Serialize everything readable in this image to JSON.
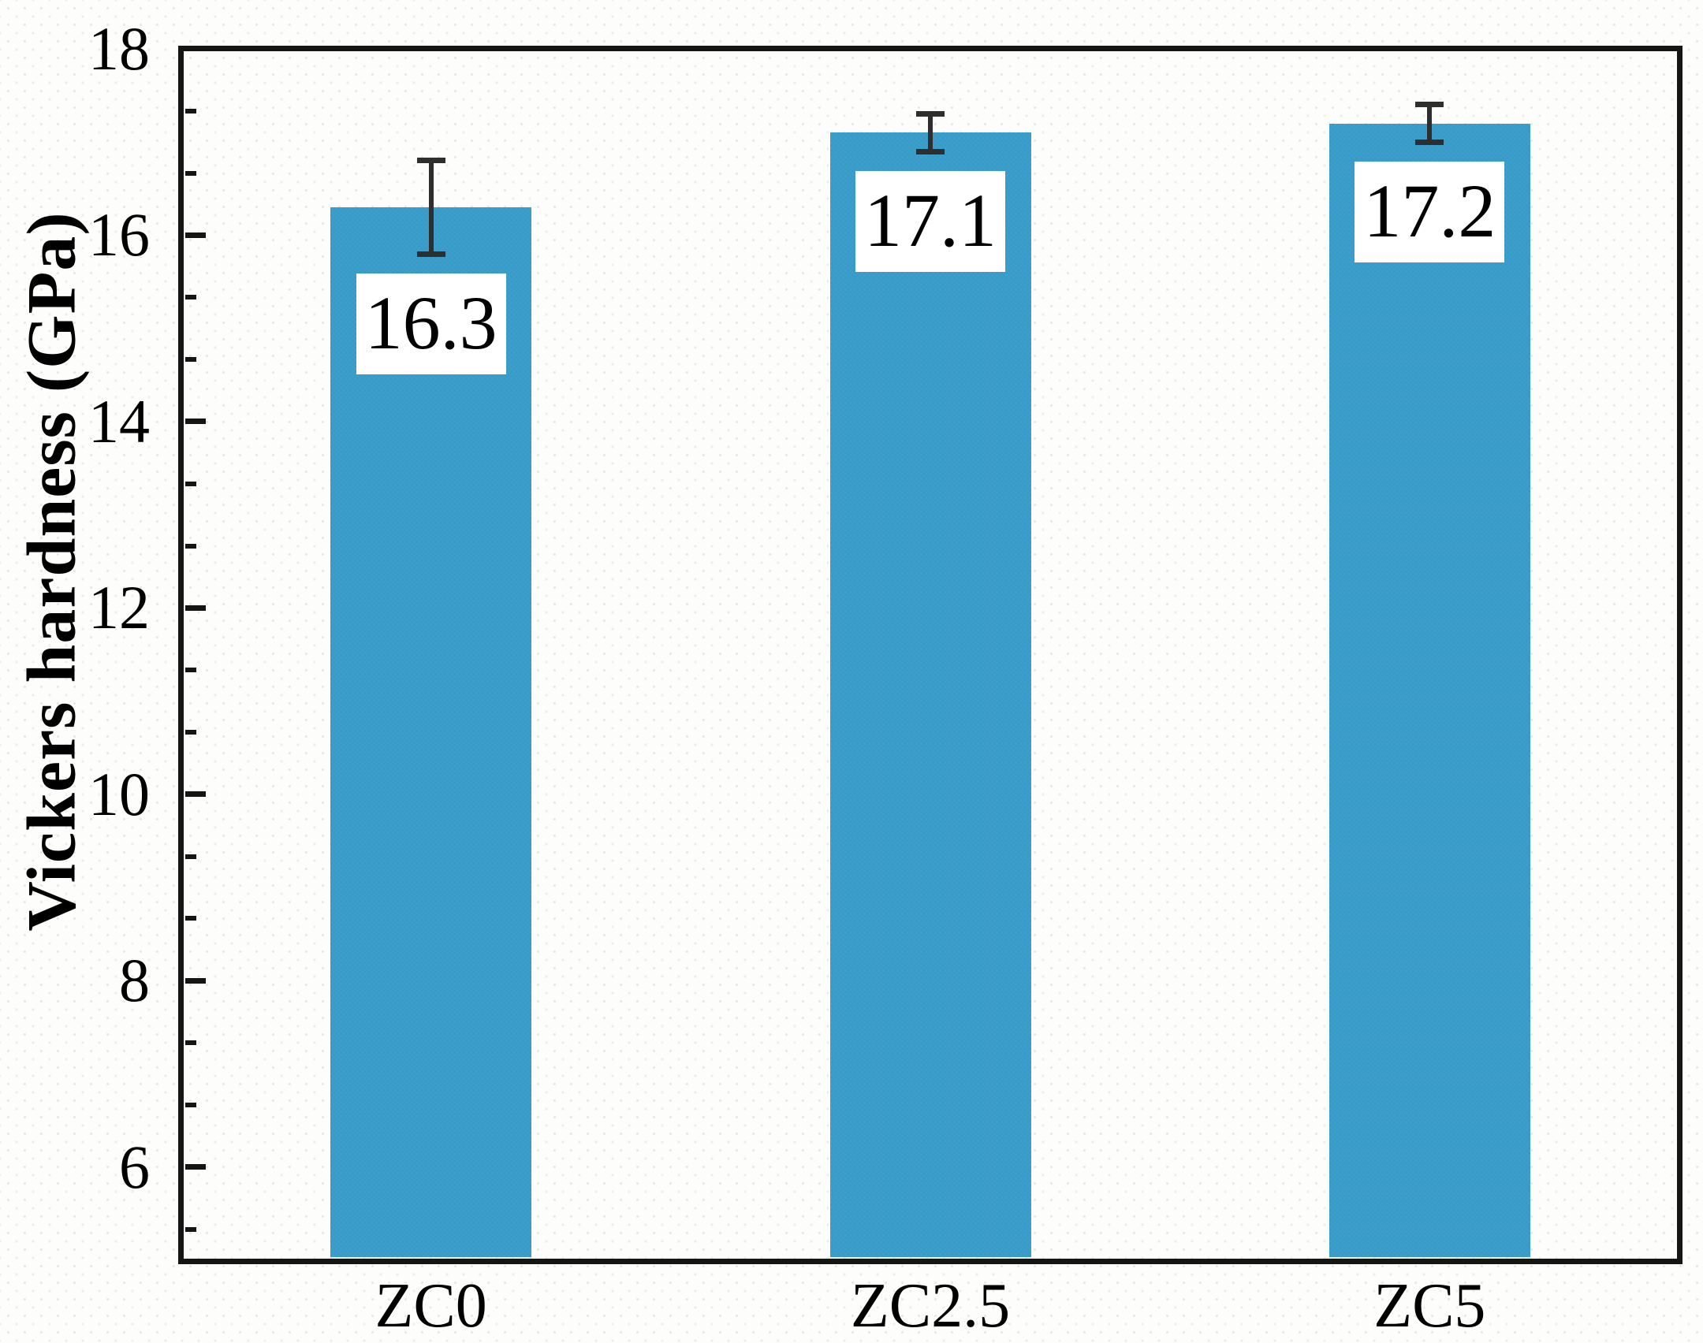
{
  "chart_data": {
    "type": "bar",
    "title": "",
    "xlabel": "",
    "ylabel": "Vickers hardness (GPa)",
    "categories": [
      "ZC0",
      "ZC2.5",
      "ZC5"
    ],
    "values": [
      16.3,
      17.1,
      17.2
    ],
    "errors": [
      0.5,
      0.2,
      0.2
    ],
    "bar_labels": [
      "16.3",
      "17.1",
      "17.2"
    ],
    "ylim": [
      5,
      18
    ],
    "y_major_ticks": [
      6,
      8,
      10,
      12,
      14,
      16,
      18
    ],
    "y_minor_ticks_per_interval": 2,
    "grid": "off",
    "legend": "none",
    "bar_color": "#3aa0c9",
    "error_bar_color": "#2e2e2e",
    "frame_color": "#151515",
    "value_label_box_color": "#ffffff",
    "text_color": "#000000"
  }
}
